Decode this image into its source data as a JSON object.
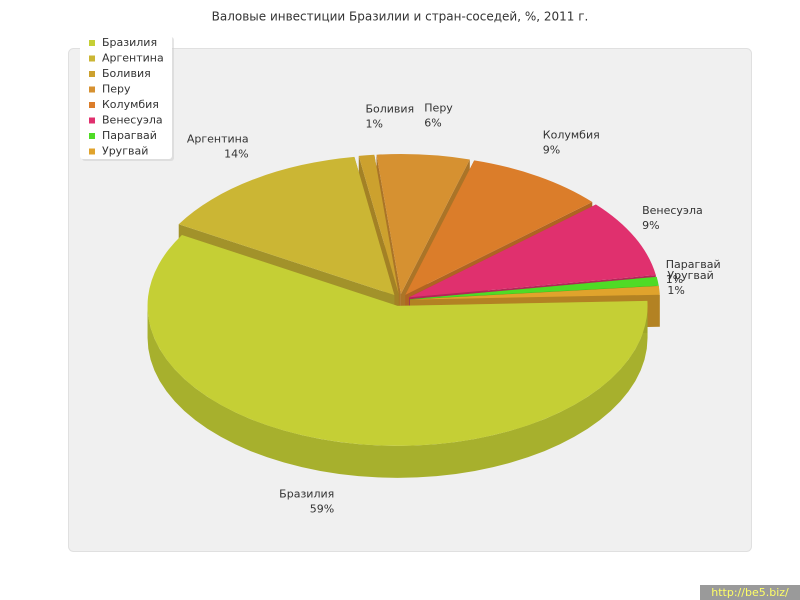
{
  "chart_data": {
    "type": "pie3d",
    "title": "Валовые инвестиции Бразилии и стран-соседей, %, 2011 г.",
    "categories": [
      "Бразилия",
      "Аргентина",
      "Боливия",
      "Перу",
      "Колумбия",
      "Венесуэла",
      "Парагвай",
      "Уругвай"
    ],
    "values": [
      59,
      14,
      1,
      6,
      9,
      9,
      1,
      1
    ],
    "value_labels": [
      "59%",
      "14%",
      "1%",
      "6%",
      "9%",
      "9%",
      "1%",
      "1%"
    ],
    "colors": [
      "#c5cf35",
      "#cbb634",
      "#cca12e",
      "#d69131",
      "#db7d2a",
      "#e0306e",
      "#4fdb26",
      "#e0a32c"
    ],
    "legend": "top-left"
  },
  "watermark": "http://be5.biz/"
}
